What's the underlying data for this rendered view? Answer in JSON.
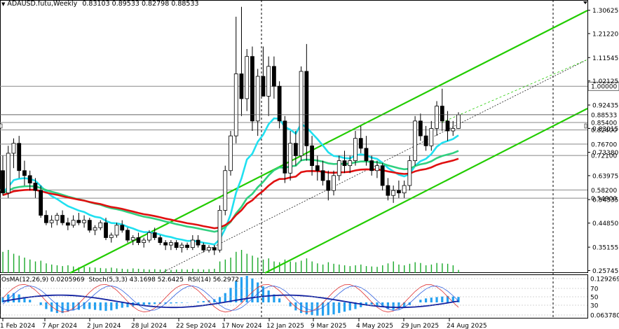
{
  "header": {
    "symbol": "ADAUSD.futu,Weekly",
    "ohlc": "0.83103 0.89533 0.82798 0.88533"
  },
  "indicator_header": {
    "osma": "OsMA(12,26,9) 0.0205969",
    "stoch": "Stoch(5,3,3) 43.1698 52.6425",
    "rsi": "RSI(14) 56.2972"
  },
  "chart_data": {
    "type": "candlestick",
    "price_axis_ticks": [
      "1.30625",
      "1.21220",
      "1.11545",
      "1.02125",
      "0.92435",
      "0.83015",
      "0.73380",
      "0.63975",
      "0.54335",
      "0.44850",
      "0.35155",
      "0.25745"
    ],
    "ylim": [
      0.2475,
      1.3475
    ],
    "date_axis_labels": [
      "1 Feb 2024",
      "7 Apr 2024",
      "2 Jun 2024",
      "28 Jul 2024",
      "22 Sep 2024",
      "17 Nov 2024",
      "12 Jan 2025",
      "9 Mar 2025",
      "4 May 2025",
      "29 Jun 2025",
      "24 Aug 2025"
    ],
    "level_labels": [
      {
        "value": 1.0,
        "text": "1.00000",
        "highlight": true
      },
      {
        "value": 0.88533,
        "text": "0.88533",
        "highlight": false
      },
      {
        "value": 0.854,
        "text": "0.85400",
        "highlight": false
      },
      {
        "value": 0.824,
        "text": "0.82400",
        "highlight": false
      },
      {
        "value": 0.767,
        "text": "0.76700",
        "highlight": false
      },
      {
        "value": 0.721,
        "text": "0.72100",
        "highlight": false
      },
      {
        "value": 0.582,
        "text": "0.58200",
        "highlight": false
      },
      {
        "value": 0.549,
        "text": "0.54900",
        "highlight": false
      }
    ],
    "candles": [
      [
        0.66,
        0.72,
        0.56,
        0.57
      ],
      [
        0.57,
        0.76,
        0.55,
        0.73
      ],
      [
        0.73,
        0.79,
        0.67,
        0.77
      ],
      [
        0.77,
        0.8,
        0.63,
        0.66
      ],
      [
        0.66,
        0.7,
        0.6,
        0.64
      ],
      [
        0.64,
        0.66,
        0.58,
        0.61
      ],
      [
        0.61,
        0.63,
        0.55,
        0.58
      ],
      [
        0.58,
        0.6,
        0.47,
        0.48
      ],
      [
        0.48,
        0.5,
        0.44,
        0.45
      ],
      [
        0.45,
        0.48,
        0.43,
        0.46
      ],
      [
        0.46,
        0.49,
        0.44,
        0.48
      ],
      [
        0.48,
        0.5,
        0.44,
        0.45
      ],
      [
        0.45,
        0.47,
        0.42,
        0.44
      ],
      [
        0.44,
        0.48,
        0.43,
        0.46
      ],
      [
        0.46,
        0.49,
        0.44,
        0.45
      ],
      [
        0.45,
        0.48,
        0.43,
        0.46
      ],
      [
        0.46,
        0.47,
        0.41,
        0.42
      ],
      [
        0.42,
        0.44,
        0.4,
        0.43
      ],
      [
        0.43,
        0.46,
        0.42,
        0.45
      ],
      [
        0.45,
        0.47,
        0.38,
        0.39
      ],
      [
        0.39,
        0.41,
        0.37,
        0.4
      ],
      [
        0.4,
        0.45,
        0.39,
        0.44
      ],
      [
        0.44,
        0.46,
        0.41,
        0.42
      ],
      [
        0.42,
        0.43,
        0.37,
        0.38
      ],
      [
        0.38,
        0.4,
        0.36,
        0.39
      ],
      [
        0.39,
        0.41,
        0.36,
        0.37
      ],
      [
        0.37,
        0.39,
        0.35,
        0.38
      ],
      [
        0.38,
        0.42,
        0.37,
        0.41
      ],
      [
        0.41,
        0.43,
        0.38,
        0.39
      ],
      [
        0.39,
        0.4,
        0.36,
        0.37
      ],
      [
        0.37,
        0.38,
        0.34,
        0.36
      ],
      [
        0.36,
        0.38,
        0.34,
        0.37
      ],
      [
        0.37,
        0.38,
        0.34,
        0.35
      ],
      [
        0.35,
        0.37,
        0.33,
        0.36
      ],
      [
        0.36,
        0.37,
        0.34,
        0.35
      ],
      [
        0.35,
        0.4,
        0.34,
        0.38
      ],
      [
        0.38,
        0.4,
        0.35,
        0.36
      ],
      [
        0.36,
        0.37,
        0.33,
        0.34
      ],
      [
        0.34,
        0.36,
        0.33,
        0.35
      ],
      [
        0.35,
        0.36,
        0.32,
        0.34
      ],
      [
        0.34,
        0.52,
        0.33,
        0.5
      ],
      [
        0.5,
        0.68,
        0.48,
        0.66
      ],
      [
        0.66,
        0.82,
        0.64,
        0.8
      ],
      [
        0.8,
        1.28,
        0.77,
        1.05
      ],
      [
        1.05,
        1.32,
        0.88,
        0.95
      ],
      [
        0.95,
        1.15,
        0.9,
        1.12
      ],
      [
        1.12,
        1.16,
        0.82,
        0.86
      ],
      [
        0.86,
        1.07,
        0.8,
        1.04
      ],
      [
        1.04,
        1.16,
        0.96,
        0.96
      ],
      [
        0.96,
        1.12,
        0.88,
        1.08
      ],
      [
        1.08,
        1.12,
        0.95,
        1.0
      ],
      [
        1.0,
        1.02,
        0.83,
        0.86
      ],
      [
        0.86,
        0.88,
        0.61,
        0.65
      ],
      [
        0.65,
        0.82,
        0.62,
        0.77
      ],
      [
        0.77,
        0.82,
        0.68,
        0.72
      ],
      [
        0.72,
        1.08,
        0.7,
        1.06
      ],
      [
        1.06,
        1.17,
        0.7,
        0.76
      ],
      [
        0.76,
        0.8,
        0.64,
        0.68
      ],
      [
        0.68,
        0.72,
        0.62,
        0.66
      ],
      [
        0.66,
        0.7,
        0.6,
        0.62
      ],
      [
        0.62,
        0.66,
        0.54,
        0.58
      ],
      [
        0.58,
        0.66,
        0.56,
        0.64
      ],
      [
        0.64,
        0.72,
        0.62,
        0.7
      ],
      [
        0.7,
        0.74,
        0.65,
        0.68
      ],
      [
        0.68,
        0.72,
        0.65,
        0.7
      ],
      [
        0.7,
        0.82,
        0.68,
        0.79
      ],
      [
        0.79,
        0.84,
        0.73,
        0.75
      ],
      [
        0.75,
        0.8,
        0.68,
        0.7
      ],
      [
        0.7,
        0.72,
        0.64,
        0.66
      ],
      [
        0.66,
        0.7,
        0.63,
        0.68
      ],
      [
        0.68,
        0.69,
        0.58,
        0.6
      ],
      [
        0.6,
        0.63,
        0.54,
        0.56
      ],
      [
        0.56,
        0.6,
        0.53,
        0.58
      ],
      [
        0.58,
        0.62,
        0.55,
        0.57
      ],
      [
        0.57,
        0.62,
        0.55,
        0.6
      ],
      [
        0.6,
        0.72,
        0.58,
        0.7
      ],
      [
        0.7,
        0.88,
        0.68,
        0.86
      ],
      [
        0.86,
        0.89,
        0.78,
        0.8
      ],
      [
        0.8,
        0.84,
        0.74,
        0.76
      ],
      [
        0.76,
        0.86,
        0.74,
        0.83
      ],
      [
        0.83,
        0.94,
        0.8,
        0.92
      ],
      [
        0.92,
        0.99,
        0.82,
        0.86
      ],
      [
        0.86,
        0.9,
        0.78,
        0.82
      ],
      [
        0.82,
        0.86,
        0.8,
        0.83
      ],
      [
        0.83,
        0.895,
        0.828,
        0.885
      ]
    ],
    "osma_values": [
      0.02,
      0.03,
      0.035,
      0.03,
      0.02,
      0.01,
      0,
      -0.01,
      -0.025,
      -0.035,
      -0.04,
      -0.04,
      -0.035,
      -0.03,
      -0.028,
      -0.025,
      -0.025,
      -0.028,
      -0.03,
      -0.032,
      -0.03,
      -0.025,
      -0.02,
      -0.018,
      -0.015,
      -0.012,
      -0.01,
      -0.008,
      -0.006,
      -0.005,
      -0.005,
      -0.004,
      -0.003,
      -0.002,
      -0.001,
      0,
      0.003,
      0.005,
      0.008,
      0.012,
      0.02,
      0.035,
      0.055,
      0.08,
      0.095,
      0.1,
      0.09,
      0.075,
      0.06,
      0.045,
      0.03,
      0.015,
      0,
      -0.015,
      -0.03,
      -0.04,
      -0.045,
      -0.048,
      -0.05,
      -0.05,
      -0.048,
      -0.045,
      -0.04,
      -0.035,
      -0.03,
      -0.025,
      -0.018,
      -0.012,
      -0.008,
      -0.012,
      -0.018,
      -0.025,
      -0.028,
      -0.025,
      -0.02,
      -0.01,
      0,
      0.01,
      0.015,
      0.018,
      0.02,
      0.022,
      0.024,
      0.022,
      0.0206
    ],
    "volume_bars": [
      0.55,
      0.6,
      0.5,
      0.45,
      0.4,
      0.35,
      0.3,
      0.32,
      0.25,
      0.22,
      0.2,
      0.18,
      0.2,
      0.17,
      0.15,
      0.16,
      0.15,
      0.14,
      0.13,
      0.12,
      0.14,
      0.12,
      0.11,
      0.1,
      0.12,
      0.11,
      0.1,
      0.09,
      0.1,
      0.09,
      0.1,
      0.08,
      0.09,
      0.1,
      0.09,
      0.11,
      0.1,
      0.09,
      0.1,
      0.11,
      0.3,
      0.35,
      0.4,
      0.55,
      0.6,
      0.5,
      0.45,
      0.4,
      0.35,
      0.38,
      0.3,
      0.28,
      0.35,
      0.3,
      0.28,
      0.32,
      0.38,
      0.3,
      0.25,
      0.22,
      0.28,
      0.24,
      0.22,
      0.2,
      0.18,
      0.2,
      0.22,
      0.18,
      0.17,
      0.16,
      0.2,
      0.25,
      0.3,
      0.22,
      0.2,
      0.24,
      0.28,
      0.26,
      0.2,
      0.22,
      0.26,
      0.25,
      0.24,
      0.2,
      0.08
    ],
    "ma_fast": {
      "color": "#20e0f0"
    },
    "ma_mid": {
      "color": "#30d080"
    },
    "ma_slow": {
      "color": "#e01010"
    },
    "channel_color": "#22cc00",
    "osma_axis_ticks": [
      "0.129269",
      "70",
      "50",
      "30",
      "0.063780"
    ],
    "title": "",
    "xlabel": "",
    "ylabel": ""
  }
}
